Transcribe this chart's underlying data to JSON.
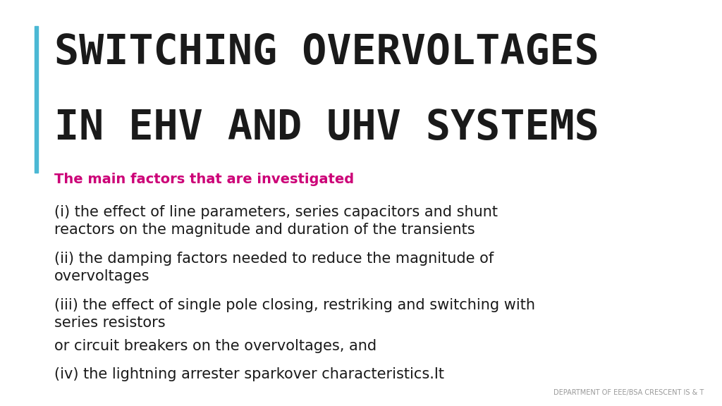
{
  "title_line1": "SWITCHING OVERVOLTAGES",
  "title_line2": "IN EHV AND UHV SYSTEMS",
  "accent_bar_color": "#4bb8d4",
  "title_color": "#1a1a1a",
  "subtitle": "The main factors that are investigated",
  "subtitle_color": "#cc0077",
  "body_paragraphs": [
    "(i) the effect of line parameters, series capacitors and shunt\nreactors on the magnitude and duration of the transients",
    "(ii) the damping factors needed to reduce the magnitude of\novervoltages",
    "(iii) the effect of single pole closing, restriking and switching with\nseries resistors",
    "or circuit breakers on the overvoltages, and",
    "(iv) the lightning arrester sparkover characteristics.It"
  ],
  "body_color": "#1a1a1a",
  "footer_text": "DEPARTMENT OF EEE/BSA CRESCENT IS & T",
  "footer_color": "#999999",
  "background_color": "#ffffff",
  "title_fontsize": 42,
  "subtitle_fontsize": 14,
  "body_fontsize": 15
}
